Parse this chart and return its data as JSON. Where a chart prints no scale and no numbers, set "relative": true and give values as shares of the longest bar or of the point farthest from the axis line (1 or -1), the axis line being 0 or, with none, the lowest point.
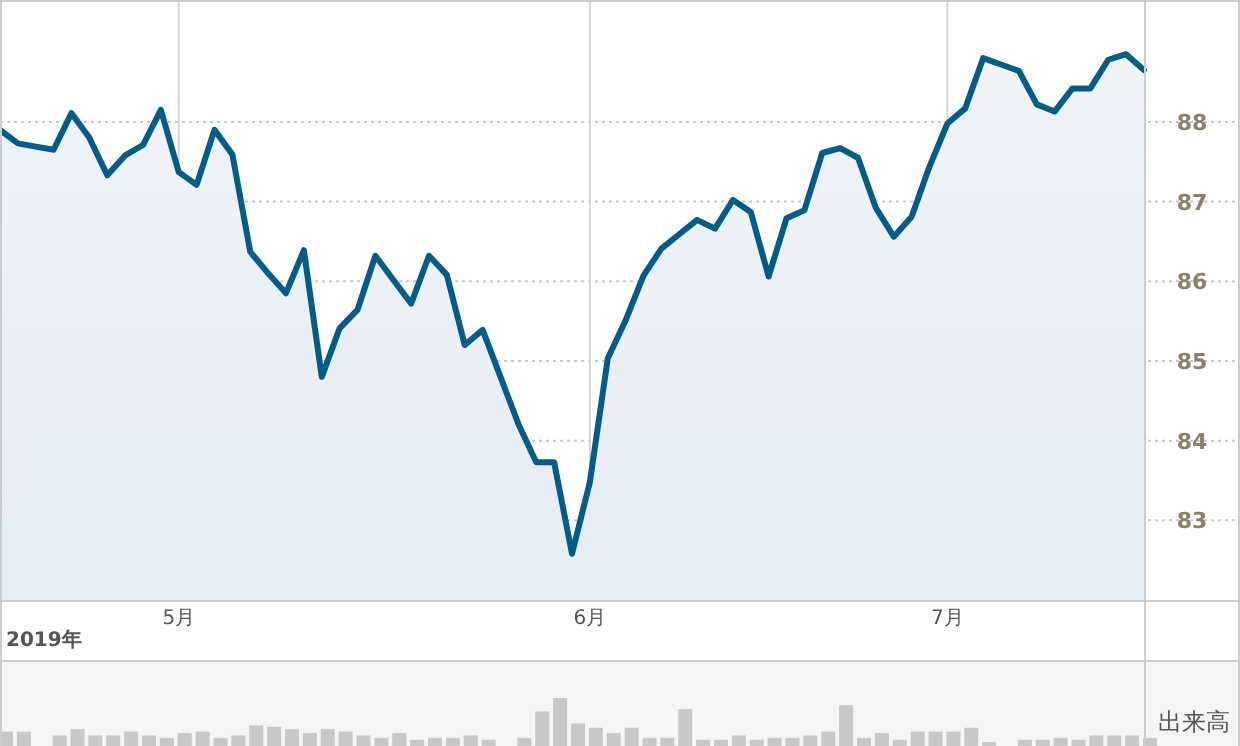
{
  "chart_data": [
    {
      "type": "area",
      "xlabel": "2019年",
      "categories": [
        null,
        null,
        null,
        null,
        null,
        null,
        null,
        null,
        null,
        null,
        "5月",
        null,
        null,
        null,
        null,
        null,
        null,
        null,
        null,
        null,
        null,
        null,
        null,
        null,
        null,
        null,
        null,
        null,
        null,
        null,
        null,
        null,
        null,
        "6月",
        null,
        null,
        null,
        null,
        null,
        null,
        null,
        null,
        null,
        null,
        null,
        null,
        null,
        null,
        null,
        null,
        null,
        null,
        null,
        "7月",
        null,
        null,
        null,
        null,
        null,
        null,
        null,
        null,
        null,
        null,
        null
      ],
      "ylim": [
        82,
        89.53
      ],
      "yticks": [
        83,
        84,
        85,
        86,
        87,
        88
      ],
      "grid": true,
      "series": [
        {
          "color": "#035c85",
          "values": [
            87.9,
            87.73,
            87.69,
            87.65,
            88.11,
            87.8,
            87.33,
            87.58,
            87.71,
            88.15,
            87.37,
            87.21,
            87.9,
            87.59,
            86.37,
            86.1,
            85.85,
            86.39,
            84.8,
            85.41,
            85.64,
            86.32,
            86.02,
            85.72,
            86.32,
            86.08,
            85.2,
            85.39,
            84.8,
            84.21,
            83.73,
            83.73,
            82.58,
            83.48,
            85.03,
            85.51,
            86.07,
            86.41,
            86.59,
            86.77,
            86.66,
            87.02,
            86.87,
            86.06,
            86.79,
            86.89,
            87.61,
            87.67,
            87.55,
            86.92,
            86.56,
            86.81,
            87.44,
            87.98,
            88.17,
            88.8,
            88.72,
            88.64,
            88.22,
            88.13,
            88.42,
            88.42,
            88.78,
            88.85,
            88.65
          ]
        }
      ]
    },
    {
      "type": "bar",
      "relative": true,
      "ylabel": "出来高",
      "categories": [
        null,
        null,
        null,
        null,
        null,
        null,
        null,
        null,
        null,
        null,
        null,
        null,
        null,
        null,
        null,
        null,
        null,
        null,
        null,
        null,
        null,
        null,
        null,
        null,
        null,
        null,
        null,
        null,
        null,
        null,
        null,
        null,
        null,
        null,
        null,
        null,
        null,
        null,
        null,
        null,
        null,
        null,
        null,
        null,
        null,
        null,
        null,
        null,
        null,
        null,
        null,
        null,
        null,
        null,
        null,
        null,
        null,
        null,
        null,
        null,
        null,
        null,
        null,
        null,
        null
      ],
      "series": [
        {
          "color": "#c8c8c8",
          "values": [
            0.3,
            0.3,
            null,
            0.22,
            0.35,
            0.22,
            0.22,
            0.3,
            0.22,
            0.17,
            0.27,
            0.3,
            0.17,
            0.22,
            0.43,
            0.4,
            0.35,
            0.27,
            0.35,
            0.3,
            0.22,
            0.17,
            0.27,
            0.13,
            0.17,
            0.17,
            0.22,
            0.13,
            null,
            0.17,
            0.72,
            1,
            0.47,
            0.38,
            0.27,
            0.38,
            0.17,
            0.17,
            0.77,
            0.13,
            0.13,
            0.22,
            0.13,
            0.17,
            0.17,
            0.22,
            0.3,
            0.85,
            0.17,
            0.27,
            0.13,
            0.3,
            0.3,
            0.3,
            0.38,
            0.08,
            null,
            0.13,
            0.13,
            0.17,
            0.13,
            0.22,
            0.22,
            0.22,
            0.17
          ]
        }
      ]
    }
  ]
}
